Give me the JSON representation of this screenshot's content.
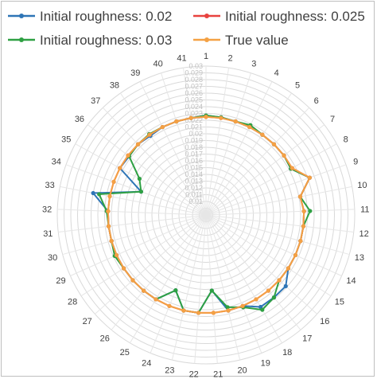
{
  "chart_data": {
    "type": "radar",
    "categories": [
      "1",
      "2",
      "3",
      "4",
      "5",
      "6",
      "7",
      "8",
      "9",
      "10",
      "11",
      "12",
      "13",
      "14",
      "15",
      "16",
      "17",
      "18",
      "19",
      "20",
      "21",
      "22",
      "23",
      "24",
      "25",
      "26",
      "27",
      "28",
      "29",
      "30",
      "31",
      "32",
      "33",
      "34",
      "35",
      "36",
      "37",
      "38",
      "39",
      "40",
      "41"
    ],
    "radial_ticks": [
      "0.01",
      "0.011",
      "0.012",
      "0.013",
      "0.014",
      "0.015",
      "0.016",
      "0.017",
      "0.018",
      "0.019",
      "0.02",
      "0.021",
      "0.022",
      "0.023",
      "0.024",
      "0.025",
      "0.026",
      "0.027",
      "0.028",
      "0.029",
      "0.03"
    ],
    "rlim": [
      0.008,
      0.03
    ],
    "legend_position": "top",
    "series": [
      {
        "name": "Initial roughness: 0.02",
        "color": "#2E75B6",
        "values": [
          0.0227,
          0.0226,
          0.0225,
          0.0225,
          0.0225,
          0.0225,
          0.0225,
          0.0223,
          0.0243,
          0.0222,
          0.0225,
          0.0225,
          0.0225,
          0.0225,
          0.0225,
          0.0238,
          0.0238,
          0.0238,
          0.0225,
          0.0225,
          0.0192,
          0.0225,
          0.0225,
          0.02,
          0.0225,
          0.0225,
          0.0225,
          0.0225,
          0.0225,
          0.0225,
          0.0225,
          0.0225,
          0.025,
          0.0182,
          0.0225,
          0.0223,
          0.0225,
          0.0223,
          0.0225,
          0.0225,
          0.0225
        ]
      },
      {
        "name": "Initial roughness: 0.025",
        "color": "#E8423F",
        "values": [
          0.0225,
          0.0225,
          0.0225,
          0.0225,
          0.0225,
          0.0225,
          0.0225,
          0.0225,
          0.0243,
          0.0222,
          0.0225,
          0.0225,
          0.0225,
          0.0225,
          0.0225,
          0.0225,
          0.0225,
          0.0225,
          0.0225,
          0.0225,
          0.0225,
          0.0225,
          0.0225,
          0.0225,
          0.0225,
          0.0225,
          0.0225,
          0.0225,
          0.0225,
          0.0225,
          0.0225,
          0.0225,
          0.0225,
          0.0225,
          0.0225,
          0.0225,
          0.0225,
          0.0225,
          0.0225,
          0.0225,
          0.0225
        ]
      },
      {
        "name": "Initial roughness: 0.03",
        "color": "#2EA043",
        "values": [
          0.0227,
          0.0226,
          0.0225,
          0.0228,
          0.0225,
          0.0225,
          0.0225,
          0.0223,
          0.0243,
          0.0222,
          0.0234,
          0.0225,
          0.0225,
          0.0225,
          0.0225,
          0.0225,
          0.0238,
          0.0243,
          0.0227,
          0.022,
          0.0192,
          0.0225,
          0.0225,
          0.02,
          0.0225,
          0.0225,
          0.0225,
          0.0225,
          0.0228,
          0.0225,
          0.0225,
          0.0227,
          0.0241,
          0.0182,
          0.0192,
          0.0223,
          0.0225,
          0.0226,
          0.0225,
          0.0225,
          0.0225
        ]
      },
      {
        "name": "True value",
        "color": "#F4A144",
        "values": [
          0.0225,
          0.0225,
          0.0225,
          0.0225,
          0.0225,
          0.0225,
          0.0225,
          0.0225,
          0.0243,
          0.0222,
          0.0225,
          0.0225,
          0.0225,
          0.0225,
          0.0225,
          0.0225,
          0.0225,
          0.0225,
          0.0225,
          0.0225,
          0.0225,
          0.0225,
          0.0225,
          0.0225,
          0.0225,
          0.0225,
          0.0225,
          0.0225,
          0.0225,
          0.0225,
          0.0225,
          0.0225,
          0.0225,
          0.0225,
          0.0225,
          0.0225,
          0.0225,
          0.0225,
          0.0225,
          0.0225,
          0.0225
        ]
      }
    ],
    "grid": true
  }
}
